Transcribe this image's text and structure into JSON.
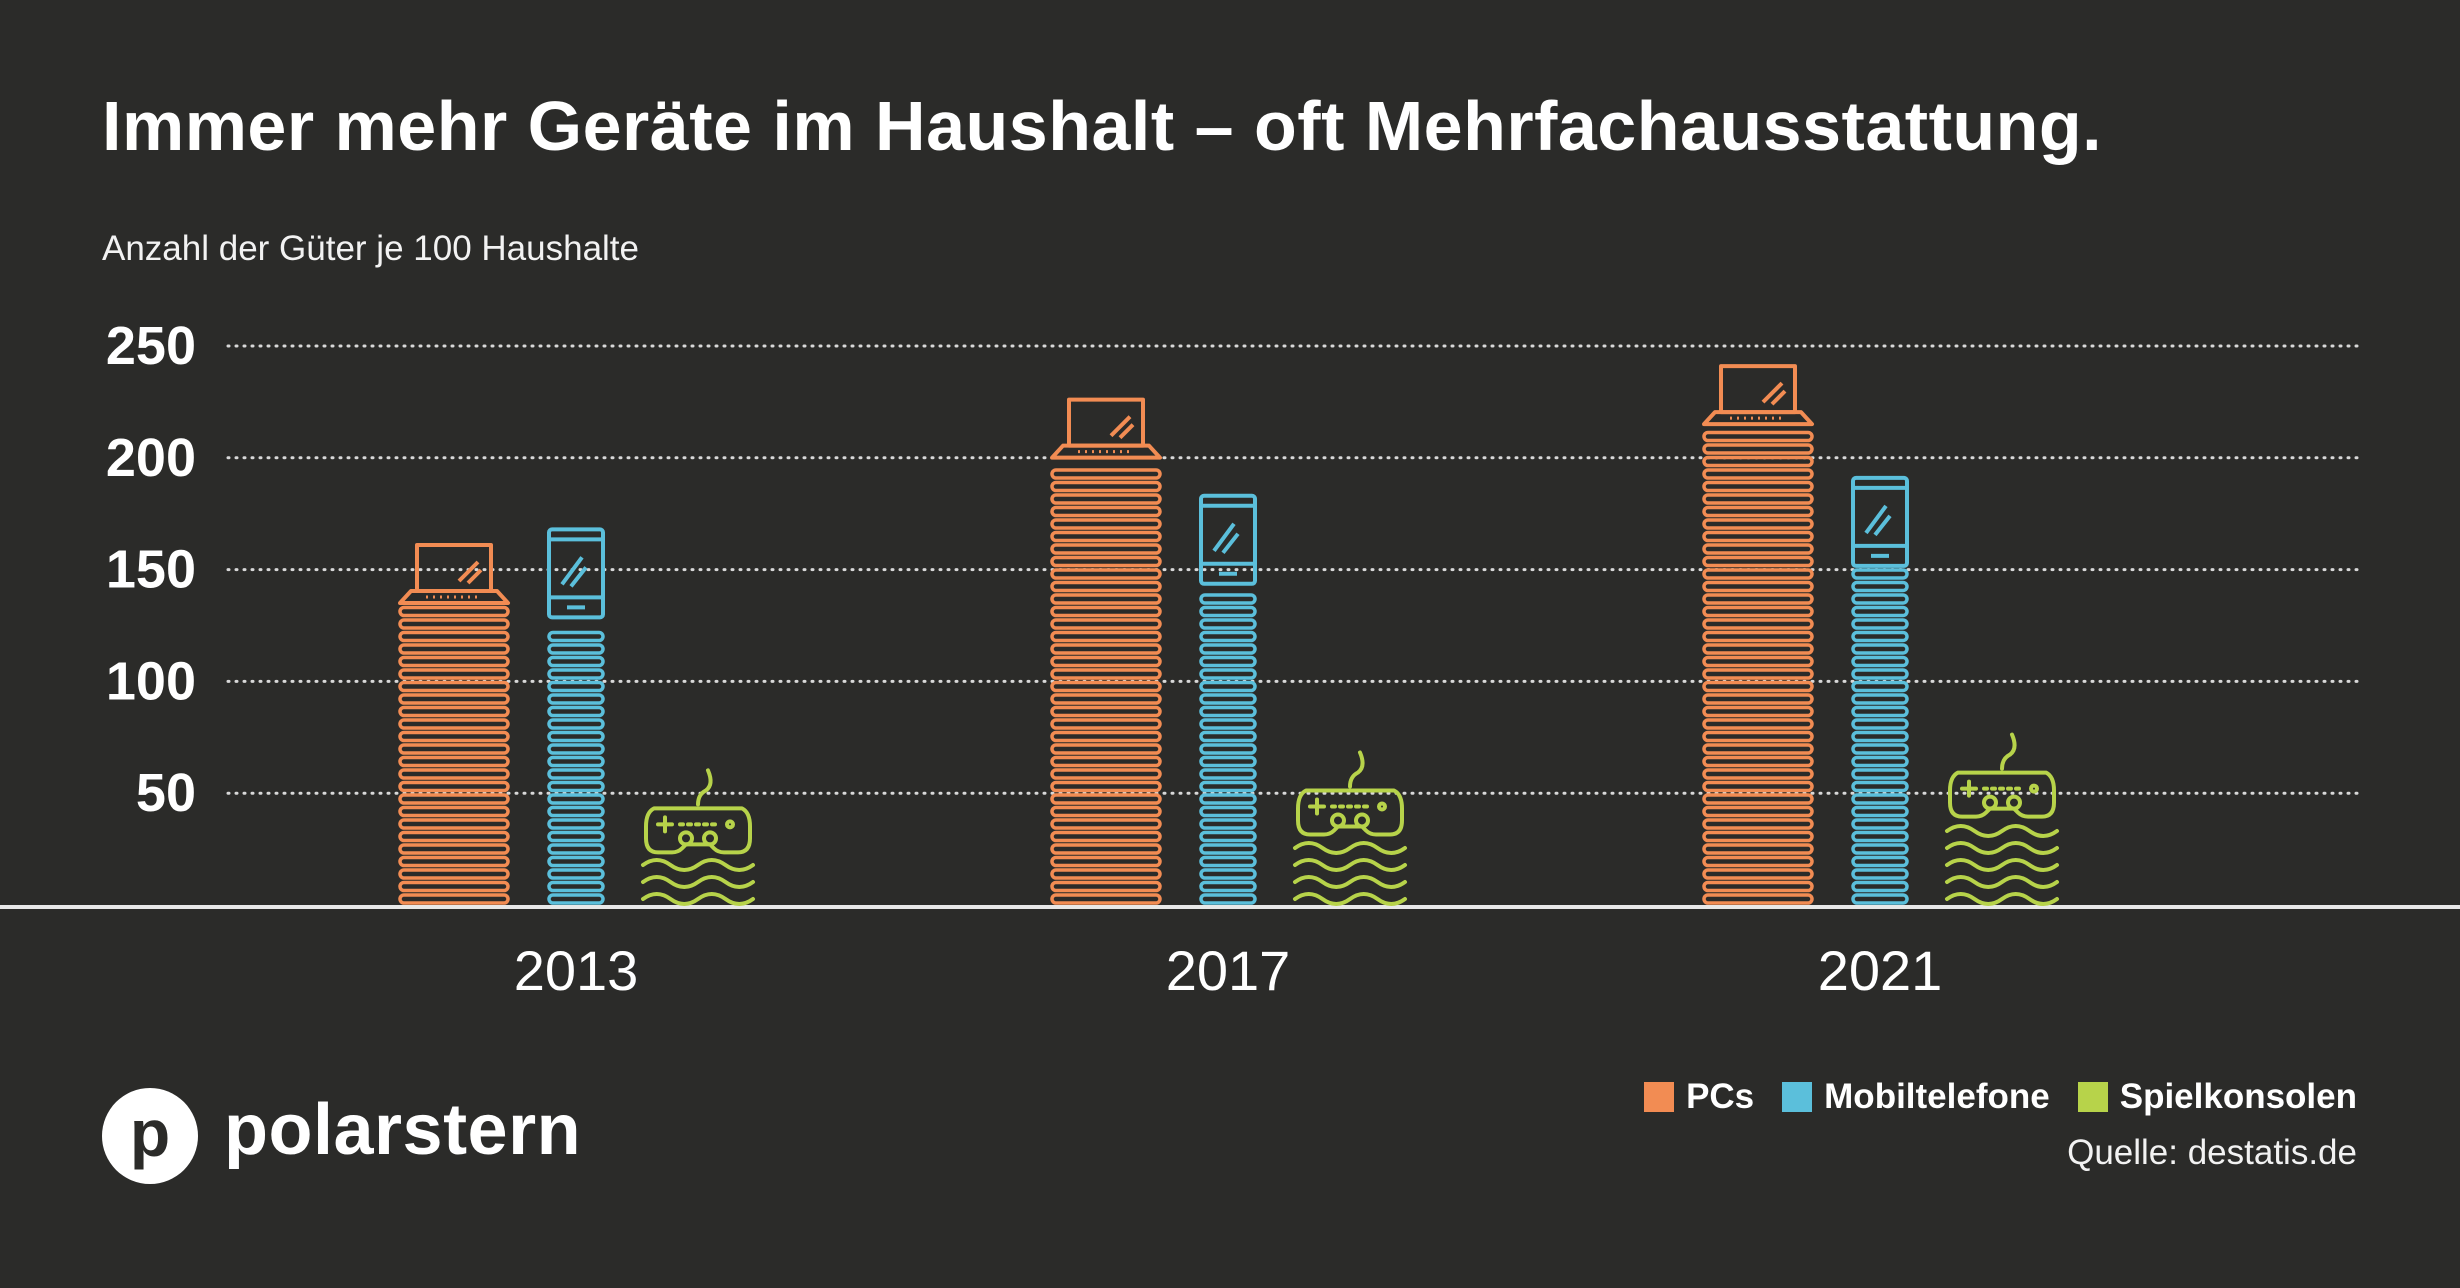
{
  "title": "Immer mehr Geräte im Haushalt – oft Mehrfachausstattung.",
  "subtitle": "Anzahl der Güter je 100 Haushalte",
  "brand": {
    "mark": "p",
    "name": "polarstern"
  },
  "legend": [
    {
      "label": "PCs",
      "color": "#f28c53",
      "icon": "laptop-icon"
    },
    {
      "label": "Mobiltelefone",
      "color": "#5bbfdb",
      "icon": "phone-icon"
    },
    {
      "label": "Spielkonsolen",
      "color": "#b7d34a",
      "icon": "gamepad-icon"
    }
  ],
  "source": "Quelle: destatis.de",
  "chart_data": {
    "type": "bar",
    "categories": [
      "2013",
      "2017",
      "2021"
    ],
    "series": [
      {
        "name": "PCs",
        "values": [
          161,
          226,
          241
        ],
        "color": "#f28c53",
        "icon": "laptop-icon"
      },
      {
        "name": "Mobiltelefone",
        "values": [
          168,
          183,
          191
        ],
        "color": "#5bbfdb",
        "icon": "phone-icon"
      },
      {
        "name": "Spielkonsolen",
        "values": [
          62,
          70,
          78
        ],
        "color": "#b7d34a",
        "icon": "gamepad-icon"
      }
    ],
    "yticks": [
      "50",
      "100",
      "150",
      "200",
      "250"
    ],
    "ylim": [
      0,
      250
    ],
    "grid": true,
    "gridStyle": "dotted",
    "legendPosition": "bottom-right",
    "xlabel": "",
    "ylabel": ""
  }
}
